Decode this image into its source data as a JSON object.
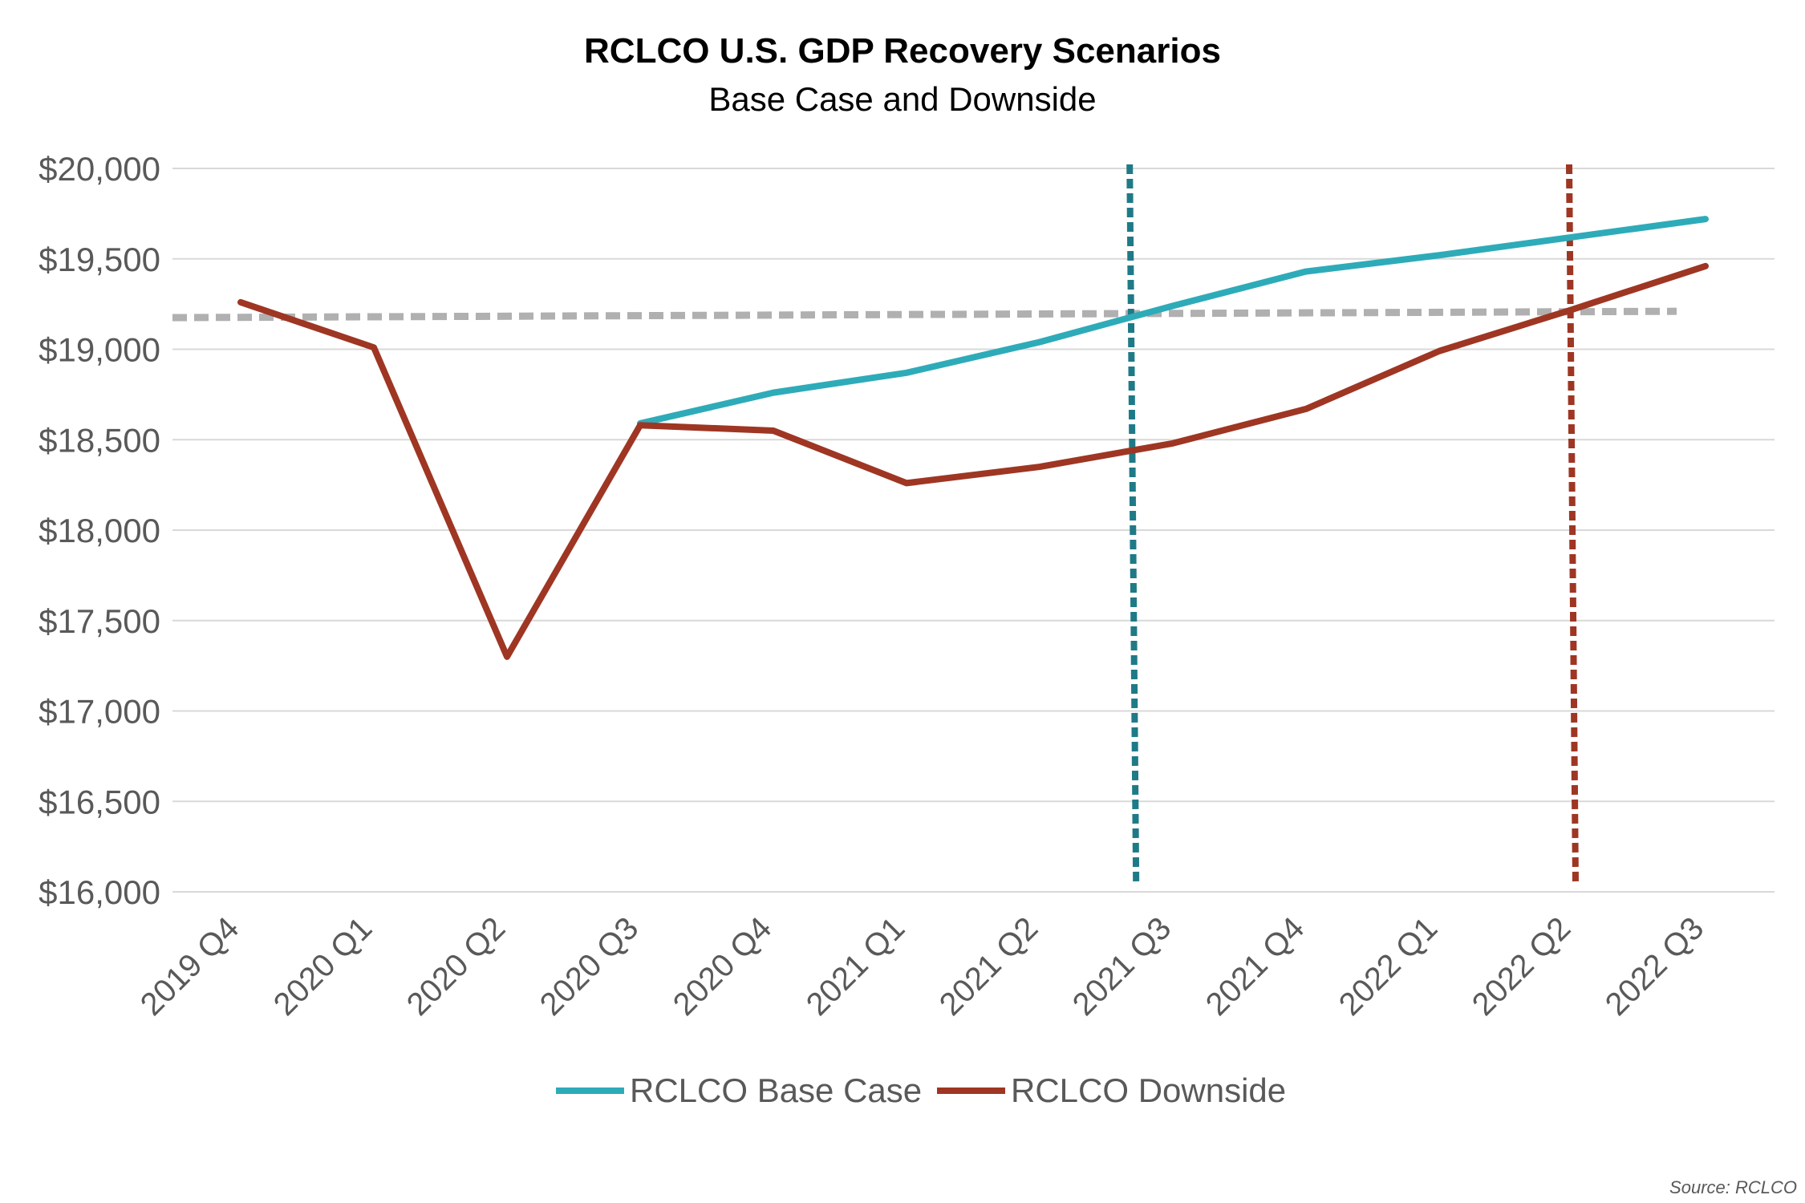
{
  "chart_data": {
    "type": "line",
    "title": "RCLCO U.S. GDP Recovery Scenarios",
    "subtitle": "Base Case and Downside",
    "categories": [
      "2019 Q4",
      "2020 Q1",
      "2020 Q2",
      "2020 Q3",
      "2020 Q4",
      "2021 Q1",
      "2021 Q2",
      "2021 Q3",
      "2021 Q4",
      "2022 Q1",
      "2022 Q2",
      "2022 Q3"
    ],
    "ylim": [
      16000,
      20000
    ],
    "yticks": [
      16000,
      16500,
      17000,
      17500,
      18000,
      18500,
      19000,
      19500,
      20000
    ],
    "ytick_labels": [
      "$16,000",
      "$16,500",
      "$17,000",
      "$17,500",
      "$18,000",
      "$18,500",
      "$19,000",
      "$19,500",
      "$20,000"
    ],
    "grid": "horizontal",
    "legend_position": "bottom",
    "series": [
      {
        "name": "RCLCO Base Case",
        "color": "#2eabb8",
        "values": [
          null,
          null,
          null,
          18590,
          18760,
          18870,
          19040,
          19240,
          19430,
          19520,
          19620,
          19720
        ]
      },
      {
        "name": "RCLCO Downside",
        "color": "#9e3623",
        "values": [
          19260,
          19010,
          17300,
          18580,
          18550,
          18260,
          18350,
          18480,
          18670,
          18990,
          19220,
          19460
        ]
      }
    ],
    "reference_lines": [
      {
        "type": "horizontal",
        "style": "dashed",
        "color": "#b0b0b0",
        "y_start": 19175,
        "y_end": 19210
      },
      {
        "type": "vertical",
        "style": "dotted",
        "color": "#1f7a87",
        "x_category_index": 6.7
      },
      {
        "type": "vertical",
        "style": "dotted",
        "color": "#9e3623",
        "x_category_index": 10.0
      }
    ]
  },
  "source_note": "Source: RCLCO"
}
